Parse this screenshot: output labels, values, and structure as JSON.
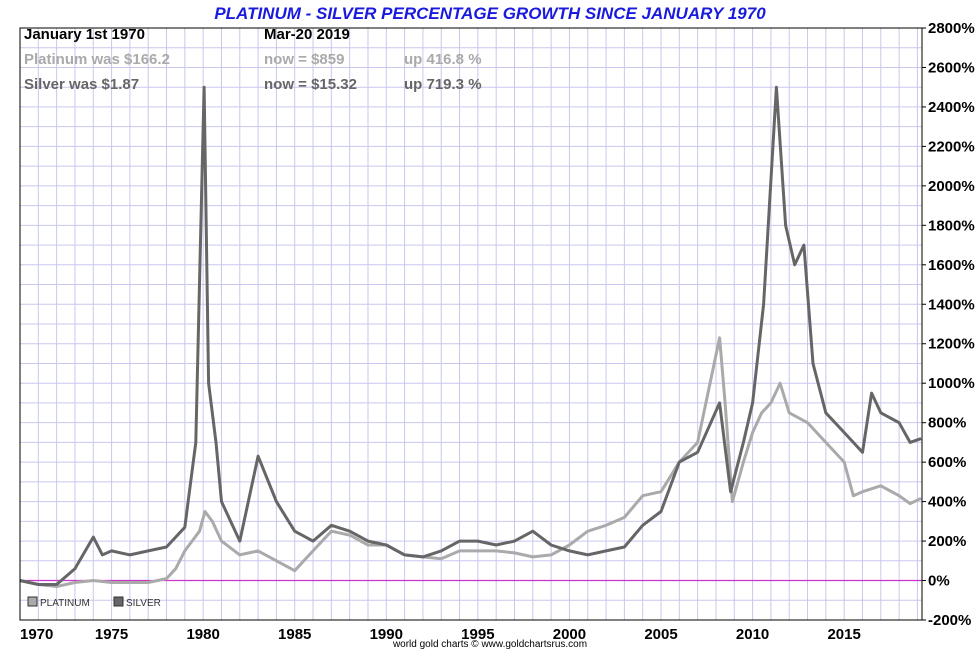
{
  "title": "PLATINUM - SILVER PERCENTAGE GROWTH SINCE JANUARY 1970",
  "header": {
    "start_label": "January 1st 1970",
    "end_label": "Mar-20  2019",
    "platinum_was": "Platinum was $166.2",
    "platinum_now": "now = $859",
    "platinum_up": "up 416.8 %",
    "silver_was": "Silver was $1.87",
    "silver_now": "now = $15.32",
    "silver_up": "up 719.3 %"
  },
  "credit": "world gold charts © www.goldchartsrus.com",
  "colors": {
    "title": "#1a1adf",
    "platinum": "#aaaaaa",
    "silver": "#666666",
    "grid": "#c8c8ee",
    "zero_line": "#cc33cc"
  },
  "chart_data": {
    "type": "line",
    "title": "PLATINUM - SILVER PERCENTAGE GROWTH SINCE JANUARY 1970",
    "xlabel": "",
    "ylabel": "",
    "xlim": [
      1970,
      2019.25
    ],
    "ylim": [
      -200,
      2800
    ],
    "x_ticks": [
      "1970",
      "1975",
      "1980",
      "1985",
      "1990",
      "1995",
      "2000",
      "2005",
      "2010",
      "2015"
    ],
    "y_ticks": [
      "-200%",
      "0%",
      "200%",
      "400%",
      "600%",
      "800%",
      "1000%",
      "1200%",
      "1400%",
      "1600%",
      "1800%",
      "2000%",
      "2200%",
      "2400%",
      "2600%",
      "2800%"
    ],
    "grid": true,
    "legend_position": "bottom-left",
    "series": [
      {
        "name": "PLATINUM",
        "color": "#aaaaaa",
        "points": [
          [
            1970,
            0
          ],
          [
            1971,
            -20
          ],
          [
            1972,
            -30
          ],
          [
            1973,
            -10
          ],
          [
            1974,
            0
          ],
          [
            1975,
            -10
          ],
          [
            1976,
            -10
          ],
          [
            1977,
            -10
          ],
          [
            1978,
            10
          ],
          [
            1978.5,
            60
          ],
          [
            1979,
            150
          ],
          [
            1979.8,
            250
          ],
          [
            1980.1,
            350
          ],
          [
            1980.5,
            300
          ],
          [
            1981,
            200
          ],
          [
            1982,
            130
          ],
          [
            1983,
            150
          ],
          [
            1984,
            100
          ],
          [
            1985,
            50
          ],
          [
            1986,
            150
          ],
          [
            1987,
            250
          ],
          [
            1988,
            230
          ],
          [
            1989,
            180
          ],
          [
            1990,
            180
          ],
          [
            1991,
            130
          ],
          [
            1992,
            120
          ],
          [
            1993,
            110
          ],
          [
            1994,
            150
          ],
          [
            1995,
            150
          ],
          [
            1996,
            150
          ],
          [
            1997,
            140
          ],
          [
            1998,
            120
          ],
          [
            1999,
            130
          ],
          [
            2000,
            180
          ],
          [
            2001,
            250
          ],
          [
            2002,
            280
          ],
          [
            2003,
            320
          ],
          [
            2004,
            430
          ],
          [
            2005,
            450
          ],
          [
            2006,
            600
          ],
          [
            2007,
            700
          ],
          [
            2008.2,
            1230
          ],
          [
            2008.5,
            900
          ],
          [
            2008.9,
            400
          ],
          [
            2009.5,
            600
          ],
          [
            2010,
            750
          ],
          [
            2010.5,
            850
          ],
          [
            2011,
            900
          ],
          [
            2011.5,
            1000
          ],
          [
            2012,
            850
          ],
          [
            2013,
            800
          ],
          [
            2014,
            700
          ],
          [
            2015,
            600
          ],
          [
            2015.5,
            430
          ],
          [
            2016,
            450
          ],
          [
            2017,
            480
          ],
          [
            2018,
            430
          ],
          [
            2018.6,
            390
          ],
          [
            2019.2,
            416.8
          ]
        ]
      },
      {
        "name": "SILVER",
        "color": "#666666",
        "points": [
          [
            1970,
            0
          ],
          [
            1971,
            -20
          ],
          [
            1972,
            -20
          ],
          [
            1973,
            60
          ],
          [
            1974,
            220
          ],
          [
            1974.5,
            130
          ],
          [
            1975,
            150
          ],
          [
            1976,
            130
          ],
          [
            1977,
            150
          ],
          [
            1978,
            170
          ],
          [
            1979,
            270
          ],
          [
            1979.6,
            700
          ],
          [
            1980.05,
            2500
          ],
          [
            1980.3,
            1000
          ],
          [
            1980.7,
            700
          ],
          [
            1981,
            400
          ],
          [
            1982,
            200
          ],
          [
            1983,
            630
          ],
          [
            1984,
            400
          ],
          [
            1985,
            250
          ],
          [
            1986,
            200
          ],
          [
            1987,
            280
          ],
          [
            1988,
            250
          ],
          [
            1989,
            200
          ],
          [
            1990,
            180
          ],
          [
            1991,
            130
          ],
          [
            1992,
            120
          ],
          [
            1993,
            150
          ],
          [
            1994,
            200
          ],
          [
            1995,
            200
          ],
          [
            1996,
            180
          ],
          [
            1997,
            200
          ],
          [
            1998,
            250
          ],
          [
            1999,
            180
          ],
          [
            2000,
            150
          ],
          [
            2001,
            130
          ],
          [
            2002,
            150
          ],
          [
            2003,
            170
          ],
          [
            2004,
            280
          ],
          [
            2005,
            350
          ],
          [
            2006,
            600
          ],
          [
            2007,
            650
          ],
          [
            2008.2,
            900
          ],
          [
            2008.8,
            450
          ],
          [
            2009.5,
            700
          ],
          [
            2010,
            900
          ],
          [
            2010.6,
            1400
          ],
          [
            2011.3,
            2500
          ],
          [
            2011.8,
            1800
          ],
          [
            2012.3,
            1600
          ],
          [
            2012.8,
            1700
          ],
          [
            2013.3,
            1100
          ],
          [
            2014,
            850
          ],
          [
            2015,
            750
          ],
          [
            2016,
            650
          ],
          [
            2016.5,
            950
          ],
          [
            2017,
            850
          ],
          [
            2018,
            800
          ],
          [
            2018.6,
            700
          ],
          [
            2019.2,
            719.3
          ]
        ]
      }
    ]
  }
}
